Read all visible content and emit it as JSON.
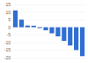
{
  "chart_data": {
    "type": "bar",
    "categories": [
      null,
      null,
      null,
      null,
      null,
      null,
      null,
      null,
      null,
      null,
      null,
      null
    ],
    "values": [
      11,
      5,
      1.2,
      1,
      -0.6,
      -2,
      -4,
      -6,
      -9,
      -12,
      -15,
      -19
    ],
    "color": "#2f6fd1",
    "ylim": [
      -20,
      15
    ],
    "yticks": [
      -20,
      -15,
      -10,
      -5,
      0,
      5,
      10,
      15
    ],
    "grid": true,
    "tick_labels": "y"
  }
}
